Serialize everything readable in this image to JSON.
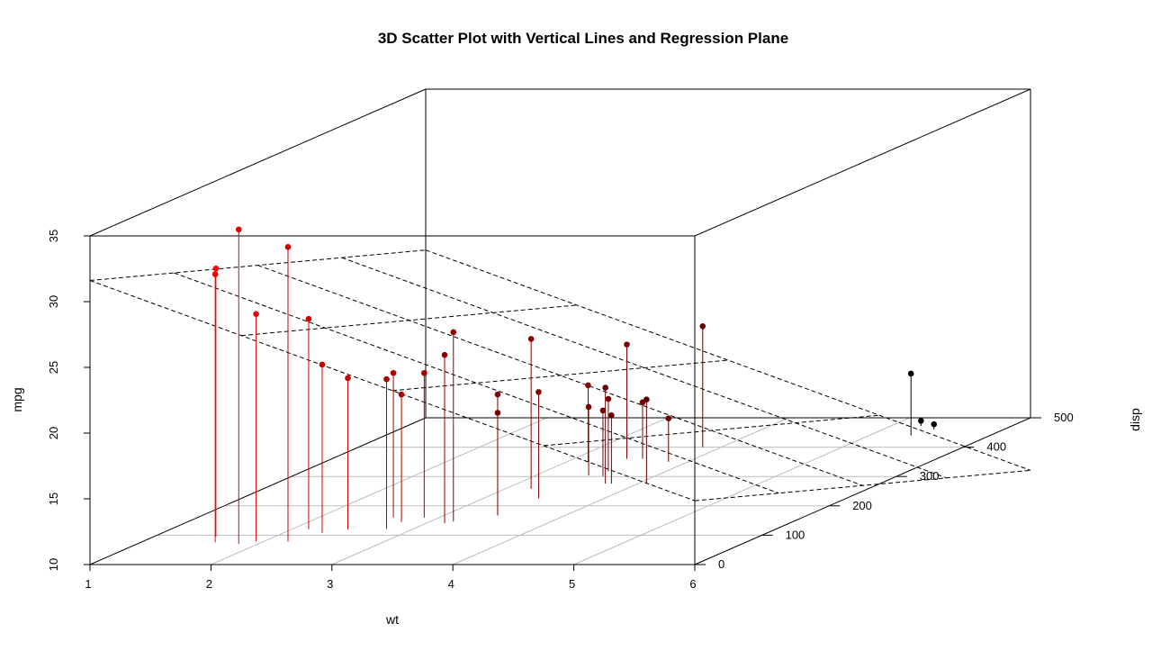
{
  "chart_data": {
    "type": "scatter",
    "title": "3D Scatter Plot with Vertical Lines and Regression Plane",
    "xlabel": "wt",
    "ylabel": "disp",
    "zlabel": "mpg",
    "xlim": [
      1,
      6
    ],
    "ylim": [
      0,
      500
    ],
    "zlim": [
      10,
      35
    ],
    "x_ticks": [
      "1",
      "2",
      "3",
      "4",
      "5",
      "6"
    ],
    "y_ticks": [
      "0",
      "100",
      "200",
      "300",
      "400",
      "500"
    ],
    "z_ticks": [
      "10",
      "15",
      "20",
      "25",
      "30",
      "35"
    ],
    "point_color_low_x": "#ff0000",
    "point_color_high_x": "#000000",
    "plane_style": "dashed",
    "regression_plane": {
      "intercept": 34.96,
      "coef_wt": -3.351,
      "coef_disp": -0.0177
    },
    "points": [
      {
        "x": 2.62,
        "y": 160.0,
        "z": 21.0
      },
      {
        "x": 2.875,
        "y": 160.0,
        "z": 21.0
      },
      {
        "x": 2.32,
        "y": 108.0,
        "z": 22.8
      },
      {
        "x": 3.215,
        "y": 258.0,
        "z": 21.4
      },
      {
        "x": 3.44,
        "y": 360.0,
        "z": 18.7
      },
      {
        "x": 3.46,
        "y": 225.0,
        "z": 18.1
      },
      {
        "x": 3.57,
        "y": 360.0,
        "z": 14.3
      },
      {
        "x": 3.19,
        "y": 146.7,
        "z": 24.4
      },
      {
        "x": 3.15,
        "y": 140.8,
        "z": 22.8
      },
      {
        "x": 3.44,
        "y": 167.6,
        "z": 19.2
      },
      {
        "x": 3.44,
        "y": 167.6,
        "z": 17.8
      },
      {
        "x": 4.07,
        "y": 275.8,
        "z": 16.4
      },
      {
        "x": 3.73,
        "y": 275.8,
        "z": 17.3
      },
      {
        "x": 3.78,
        "y": 275.8,
        "z": 15.2
      },
      {
        "x": 5.25,
        "y": 472.0,
        "z": 10.4
      },
      {
        "x": 5.424,
        "y": 460.0,
        "z": 10.4
      },
      {
        "x": 5.345,
        "y": 440.0,
        "z": 14.7
      },
      {
        "x": 2.2,
        "y": 78.7,
        "z": 32.4
      },
      {
        "x": 1.615,
        "y": 75.7,
        "z": 30.4
      },
      {
        "x": 1.835,
        "y": 71.1,
        "z": 33.9
      },
      {
        "x": 2.465,
        "y": 120.1,
        "z": 21.5
      },
      {
        "x": 3.52,
        "y": 318.0,
        "z": 15.5
      },
      {
        "x": 3.435,
        "y": 304.0,
        "z": 15.2
      },
      {
        "x": 3.84,
        "y": 350.0,
        "z": 13.3
      },
      {
        "x": 3.845,
        "y": 400.0,
        "z": 19.2
      },
      {
        "x": 1.935,
        "y": 79.0,
        "z": 27.3
      },
      {
        "x": 2.14,
        "y": 120.3,
        "z": 26.0
      },
      {
        "x": 1.513,
        "y": 95.1,
        "z": 30.4
      },
      {
        "x": 3.17,
        "y": 351.0,
        "z": 15.8
      },
      {
        "x": 2.77,
        "y": 145.0,
        "z": 19.7
      },
      {
        "x": 3.57,
        "y": 301.0,
        "z": 15.0
      },
      {
        "x": 2.78,
        "y": 121.0,
        "z": 21.4
      }
    ]
  }
}
